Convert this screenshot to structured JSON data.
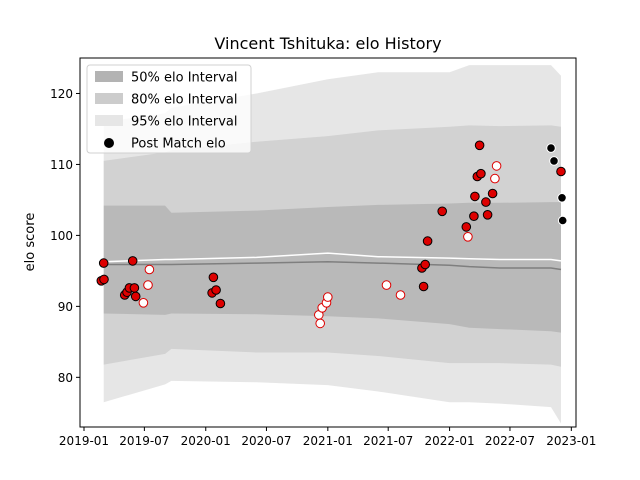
{
  "chart_data": {
    "type": "scatter",
    "title": "Vincent Tshituka: elo History",
    "xlabel": "",
    "ylabel": "elo score",
    "xlim": [
      "2018-12-20",
      "2023-01-15"
    ],
    "ylim": [
      73,
      125
    ],
    "x_ticks": [
      {
        "date": "2019-01-01",
        "label": "2019-01"
      },
      {
        "date": "2019-07-01",
        "label": "2019-07"
      },
      {
        "date": "2020-01-01",
        "label": "2020-01"
      },
      {
        "date": "2020-07-01",
        "label": "2020-07"
      },
      {
        "date": "2021-01-01",
        "label": "2021-01"
      },
      {
        "date": "2021-07-01",
        "label": "2021-07"
      },
      {
        "date": "2022-01-01",
        "label": "2022-01"
      },
      {
        "date": "2022-07-01",
        "label": "2022-07"
      },
      {
        "date": "2023-01-01",
        "label": "2023-01"
      }
    ],
    "y_ticks": [
      80,
      90,
      100,
      110,
      120
    ],
    "legend_position": "top-left",
    "legend": [
      {
        "label": "50% elo Interval",
        "kind": "band",
        "color": "#b3b3b3"
      },
      {
        "label": "80% elo Interval",
        "kind": "band",
        "color": "#cccccc"
      },
      {
        "label": "95% elo Interval",
        "kind": "band",
        "color": "#e6e6e6"
      },
      {
        "label": "Post Match elo",
        "kind": "marker",
        "color": "#000000"
      }
    ],
    "colors": {
      "win": "#dd0000",
      "loss_edge": "#dd0000",
      "upcoming": "#000000",
      "median": "#7f7f7f",
      "mean": "#ffffff"
    },
    "bands": {
      "dates": [
        "2019-03-01",
        "2019-09-01",
        "2019-09-20",
        "2020-06-01",
        "2021-01-01",
        "2021-06-01",
        "2022-01-01",
        "2022-03-01",
        "2022-06-01",
        "2022-11-01",
        "2022-12-01"
      ],
      "p95_low": [
        76.5,
        79.0,
        79.5,
        79.3,
        78.9,
        78.0,
        76.5,
        76.5,
        76.3,
        75.8,
        73.5
      ],
      "p95_high": [
        116.0,
        117.2,
        118.0,
        120.0,
        122.0,
        123.0,
        123.0,
        124.0,
        124.0,
        124.0,
        122.5
      ],
      "p80_low": [
        81.8,
        83.3,
        84.0,
        83.5,
        83.5,
        83.0,
        82.0,
        82.0,
        82.0,
        81.8,
        81.5
      ],
      "p80_high": [
        110.5,
        111.7,
        112.0,
        113.2,
        114.0,
        114.8,
        115.3,
        115.5,
        115.4,
        115.5,
        115.3
      ],
      "p50_low": [
        89.0,
        88.8,
        89.0,
        88.9,
        88.6,
        88.3,
        87.5,
        87.0,
        86.8,
        86.5,
        86.3
      ],
      "p50_high": [
        104.2,
        104.2,
        103.2,
        103.5,
        104.0,
        104.3,
        104.5,
        104.6,
        104.6,
        104.7,
        104.7
      ],
      "median": [
        95.9,
        95.9,
        95.9,
        96.1,
        96.3,
        96.1,
        95.8,
        95.6,
        95.4,
        95.4,
        95.2
      ],
      "mean": [
        96.3,
        96.6,
        96.6,
        96.9,
        97.5,
        97.0,
        96.8,
        96.7,
        96.6,
        96.6,
        96.4
      ]
    },
    "points": [
      {
        "date": "2019-02-22",
        "elo": 93.6,
        "style": "filled"
      },
      {
        "date": "2019-03-02",
        "elo": 93.8,
        "style": "filled"
      },
      {
        "date": "2019-03-01",
        "elo": 96.1,
        "style": "filled"
      },
      {
        "date": "2019-05-03",
        "elo": 91.6,
        "style": "filled"
      },
      {
        "date": "2019-05-10",
        "elo": 92.0,
        "style": "filled"
      },
      {
        "date": "2019-05-17",
        "elo": 92.6,
        "style": "filled"
      },
      {
        "date": "2019-05-27",
        "elo": 96.4,
        "style": "filled"
      },
      {
        "date": "2019-06-01",
        "elo": 92.6,
        "style": "filled"
      },
      {
        "date": "2019-06-05",
        "elo": 91.4,
        "style": "filled"
      },
      {
        "date": "2019-06-28",
        "elo": 90.5,
        "style": "open"
      },
      {
        "date": "2019-07-12",
        "elo": 93.0,
        "style": "open"
      },
      {
        "date": "2019-07-16",
        "elo": 95.2,
        "style": "open"
      },
      {
        "date": "2020-01-20",
        "elo": 91.9,
        "style": "filled"
      },
      {
        "date": "2020-01-24",
        "elo": 94.1,
        "style": "filled"
      },
      {
        "date": "2020-02-01",
        "elo": 92.3,
        "style": "filled"
      },
      {
        "date": "2020-02-14",
        "elo": 90.4,
        "style": "filled"
      },
      {
        "date": "2020-12-05",
        "elo": 88.8,
        "style": "open"
      },
      {
        "date": "2020-12-09",
        "elo": 87.6,
        "style": "open"
      },
      {
        "date": "2020-12-15",
        "elo": 89.8,
        "style": "open"
      },
      {
        "date": "2020-12-28",
        "elo": 90.5,
        "style": "open"
      },
      {
        "date": "2021-01-01",
        "elo": 91.3,
        "style": "open"
      },
      {
        "date": "2021-06-26",
        "elo": 93.0,
        "style": "open"
      },
      {
        "date": "2021-08-07",
        "elo": 91.6,
        "style": "open"
      },
      {
        "date": "2021-10-10",
        "elo": 95.4,
        "style": "filled"
      },
      {
        "date": "2021-10-15",
        "elo": 92.8,
        "style": "filled"
      },
      {
        "date": "2021-10-20",
        "elo": 95.9,
        "style": "filled"
      },
      {
        "date": "2021-10-27",
        "elo": 99.2,
        "style": "filled"
      },
      {
        "date": "2021-12-10",
        "elo": 103.4,
        "style": "filled"
      },
      {
        "date": "2022-02-20",
        "elo": 101.2,
        "style": "filled"
      },
      {
        "date": "2022-02-25",
        "elo": 99.8,
        "style": "open"
      },
      {
        "date": "2022-03-15",
        "elo": 102.7,
        "style": "filled"
      },
      {
        "date": "2022-03-18",
        "elo": 105.5,
        "style": "filled"
      },
      {
        "date": "2022-03-25",
        "elo": 108.3,
        "style": "filled"
      },
      {
        "date": "2022-04-01",
        "elo": 112.7,
        "style": "filled"
      },
      {
        "date": "2022-04-05",
        "elo": 108.7,
        "style": "filled"
      },
      {
        "date": "2022-04-20",
        "elo": 104.7,
        "style": "filled"
      },
      {
        "date": "2022-04-25",
        "elo": 102.9,
        "style": "filled"
      },
      {
        "date": "2022-05-10",
        "elo": 105.9,
        "style": "filled"
      },
      {
        "date": "2022-05-17",
        "elo": 108.0,
        "style": "open"
      },
      {
        "date": "2022-05-22",
        "elo": 109.8,
        "style": "open"
      },
      {
        "date": "2022-11-01",
        "elo": 112.3,
        "style": "upcoming"
      },
      {
        "date": "2022-11-10",
        "elo": 110.5,
        "style": "upcoming"
      },
      {
        "date": "2022-12-01",
        "elo": 109.0,
        "style": "filled"
      },
      {
        "date": "2022-12-04",
        "elo": 105.3,
        "style": "upcoming"
      },
      {
        "date": "2022-12-06",
        "elo": 102.1,
        "style": "upcoming"
      }
    ]
  }
}
